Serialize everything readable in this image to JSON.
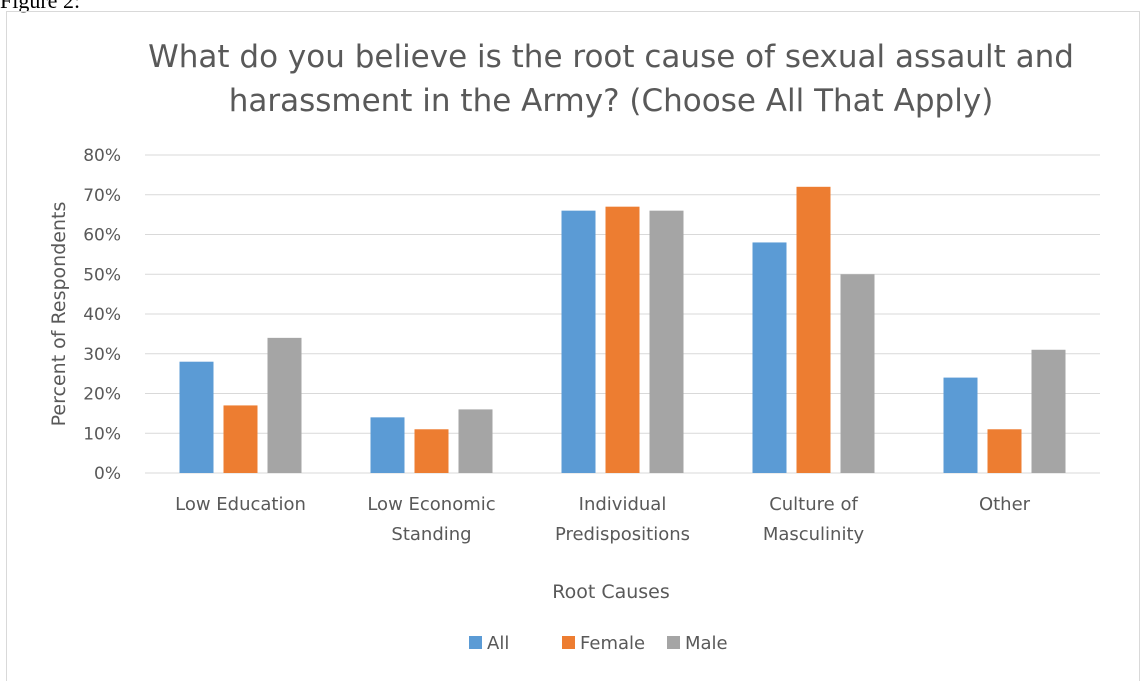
{
  "figure_label": "Figure 2:",
  "colors": {
    "All": "#5b9bd5",
    "Female": "#ed7d31",
    "Male": "#a5a5a5",
    "gridline": "#d9d9d9",
    "text": "#595959"
  },
  "chart_data": {
    "type": "bar",
    "title": "What do you believe is the root cause of sexual assault and harassment in the Army? (Choose All That Apply)",
    "title_lines": [
      "What do you believe is the root cause of sexual assault and",
      "harassment in the Army? (Choose All That Apply)"
    ],
    "xlabel": "Root Causes",
    "ylabel": "Percent of Respondents",
    "categories": [
      "Low Education",
      "Low Economic Standing",
      "Individual Predispositions",
      "Culture of Masculinity",
      "Other"
    ],
    "category_lines": [
      [
        "Low Education"
      ],
      [
        "Low Economic",
        "Standing"
      ],
      [
        "Individual",
        "Predispositions"
      ],
      [
        "Culture of",
        "Masculinity"
      ],
      [
        "Other"
      ]
    ],
    "series": [
      {
        "name": "All",
        "values": [
          28,
          14,
          66,
          58,
          24
        ]
      },
      {
        "name": "Female",
        "values": [
          17,
          11,
          67,
          72,
          11
        ]
      },
      {
        "name": "Male",
        "values": [
          34,
          16,
          66,
          50,
          31
        ]
      }
    ],
    "ylim": [
      0,
      80
    ],
    "yticks": [
      "0%",
      "10%",
      "20%",
      "30%",
      "40%",
      "50%",
      "60%",
      "70%",
      "80%"
    ],
    "grid": true,
    "legend_position": "bottom"
  }
}
